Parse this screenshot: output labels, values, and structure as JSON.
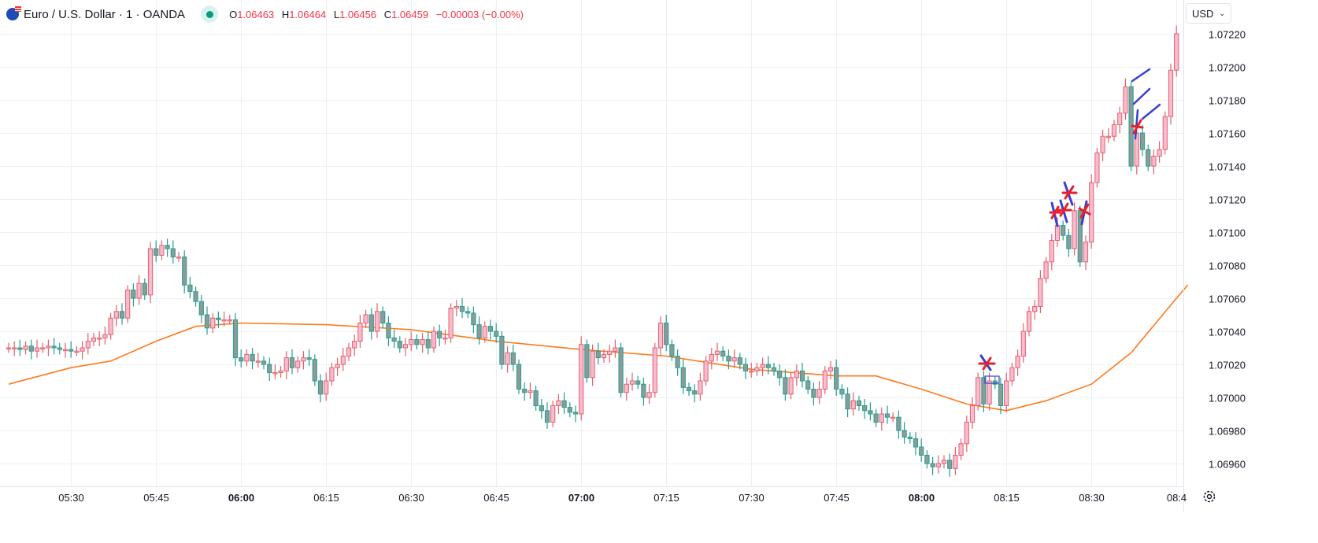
{
  "header": {
    "symbol": "Euro / U.S. Dollar · 1 · OANDA",
    "o_label": "O",
    "o": "1.06463",
    "h_label": "H",
    "h": "1.06464",
    "l_label": "L",
    "l": "1.06456",
    "c_label": "C",
    "c": "1.06459",
    "change": "−0.00003 (−0.00%)"
  },
  "currency_button": "USD",
  "colors": {
    "up_fill": "#f8bbd0",
    "up_border": "#e5606c",
    "down_fill": "#8d9a9a",
    "down_border": "#22a08f",
    "ma": "#ff7a1a",
    "grid": "#edf0f4",
    "annotation_red": "#e8202a",
    "annotation_blue": "#3a3fd0"
  },
  "chart_data": {
    "type": "candlestick",
    "title": "Euro / U.S. Dollar · 1 · OANDA",
    "interval_minutes": 1,
    "start_time": "05:19",
    "ylim": [
      1.06945,
      1.07235
    ],
    "price_ticks": [
      "1.07220",
      "1.07200",
      "1.07180",
      "1.07160",
      "1.07140",
      "1.07120",
      "1.07100",
      "1.07080",
      "1.07060",
      "1.07040",
      "1.07020",
      "1.07000",
      "1.06980",
      "1.06960"
    ],
    "time_ticks": [
      {
        "label": "05:30",
        "minute": 11,
        "bold": false
      },
      {
        "label": "05:45",
        "minute": 26,
        "bold": false
      },
      {
        "label": "06:00",
        "minute": 41,
        "bold": true
      },
      {
        "label": "06:15",
        "minute": 56,
        "bold": false
      },
      {
        "label": "06:30",
        "minute": 71,
        "bold": false
      },
      {
        "label": "06:45",
        "minute": 86,
        "bold": false
      },
      {
        "label": "07:00",
        "minute": 101,
        "bold": true
      },
      {
        "label": "07:15",
        "minute": 116,
        "bold": false
      },
      {
        "label": "07:30",
        "minute": 131,
        "bold": false
      },
      {
        "label": "07:45",
        "minute": 146,
        "bold": false
      },
      {
        "label": "08:00",
        "minute": 161,
        "bold": true
      },
      {
        "label": "08:15",
        "minute": 176,
        "bold": false
      },
      {
        "label": "08:30",
        "minute": 191,
        "bold": false
      },
      {
        "label": "08:4",
        "minute": 206,
        "bold": false
      }
    ],
    "close": [
      1.0703,
      1.0703,
      1.07029,
      1.07031,
      1.07028,
      1.0703,
      1.0703,
      1.07031,
      1.0703,
      1.07029,
      1.07029,
      1.07028,
      1.07028,
      1.0703,
      1.07034,
      1.07036,
      1.07036,
      1.07038,
      1.07048,
      1.07052,
      1.07048,
      1.07065,
      1.0706,
      1.07069,
      1.07062,
      1.0709,
      1.07086,
      1.07092,
      1.0709,
      1.07085,
      1.07085,
      1.07068,
      1.07064,
      1.07058,
      1.0705,
      1.07042,
      1.07048,
      1.07047,
      1.07047,
      1.07047,
      1.07024,
      1.07022,
      1.07026,
      1.07022,
      1.07022,
      1.0702,
      1.07015,
      1.07015,
      1.07016,
      1.07024,
      1.07018,
      1.07022,
      1.07024,
      1.07023,
      1.0701,
      1.07002,
      1.0701,
      1.07018,
      1.0702,
      1.07025,
      1.0703,
      1.07034,
      1.07045,
      1.0705,
      1.0704,
      1.07052,
      1.07045,
      1.07036,
      1.07034,
      1.0703,
      1.07032,
      1.07035,
      1.07032,
      1.07035,
      1.0703,
      1.0704,
      1.07036,
      1.07036,
      1.07054,
      1.07055,
      1.07052,
      1.07051,
      1.07044,
      1.07036,
      1.07043,
      1.0704,
      1.07037,
      1.0702,
      1.07027,
      1.0702,
      1.07005,
      1.07003,
      1.07004,
      1.06995,
      1.06992,
      1.06985,
      1.06995,
      1.06998,
      1.06994,
      1.06991,
      1.0699,
      1.07032,
      1.07012,
      1.07028,
      1.07024,
      1.07026,
      1.07028,
      1.0703,
      1.07003,
      1.07008,
      1.0701,
      1.07008,
      1.07,
      1.07003,
      1.0703,
      1.07045,
      1.07032,
      1.07025,
      1.07018,
      1.07006,
      1.07004,
      1.07002,
      1.0701,
      1.07022,
      1.07026,
      1.07028,
      1.07025,
      1.07022,
      1.07024,
      1.0702,
      1.07016,
      1.07016,
      1.07018,
      1.0702,
      1.07018,
      1.07016,
      1.07012,
      1.07002,
      1.07012,
      1.07016,
      1.0701,
      1.07005,
      1.07,
      1.07005,
      1.07016,
      1.07018,
      1.07005,
      1.07002,
      1.06993,
      1.06998,
      1.06995,
      1.06992,
      1.0699,
      1.06985,
      1.0699,
      1.06988,
      1.06988,
      1.0698,
      1.06976,
      1.06975,
      1.0697,
      1.06965,
      1.0696,
      1.06958,
      1.0696,
      1.06962,
      1.06957,
      1.06965,
      1.06972,
      1.06985,
      1.06995,
      1.07012,
      1.06996,
      1.0701,
      1.07008,
      1.06995,
      1.0701,
      1.07018,
      1.07025,
      1.0704,
      1.07052,
      1.07055,
      1.07072,
      1.07082,
      1.07095,
      1.07104,
      1.07098,
      1.0709,
      1.07113,
      1.07082,
      1.07094,
      1.0713,
      1.07148,
      1.07158,
      1.07158,
      1.07165,
      1.07172,
      1.07188,
      1.0714,
      1.0716,
      1.0715,
      1.0714,
      1.07146,
      1.0715,
      1.0717,
      1.07198,
      1.0722
    ],
    "moving_average": [
      {
        "minute": 0,
        "value": 1.07008
      },
      {
        "minute": 11,
        "value": 1.07018
      },
      {
        "minute": 18,
        "value": 1.07022
      },
      {
        "minute": 26,
        "value": 1.07034
      },
      {
        "minute": 33,
        "value": 1.07043
      },
      {
        "minute": 41,
        "value": 1.07045
      },
      {
        "minute": 56,
        "value": 1.07044
      },
      {
        "minute": 71,
        "value": 1.07041
      },
      {
        "minute": 86,
        "value": 1.07034
      },
      {
        "minute": 101,
        "value": 1.07029
      },
      {
        "minute": 116,
        "value": 1.07025
      },
      {
        "minute": 131,
        "value": 1.07017
      },
      {
        "minute": 146,
        "value": 1.07013
      },
      {
        "minute": 153,
        "value": 1.07013
      },
      {
        "minute": 161,
        "value": 1.07005
      },
      {
        "minute": 169,
        "value": 1.06996
      },
      {
        "minute": 176,
        "value": 1.06992
      },
      {
        "minute": 183,
        "value": 1.06998
      },
      {
        "minute": 191,
        "value": 1.07008
      },
      {
        "minute": 198,
        "value": 1.07027
      },
      {
        "minute": 206,
        "value": 1.0706
      },
      {
        "minute": 208,
        "value": 1.07068
      }
    ]
  }
}
